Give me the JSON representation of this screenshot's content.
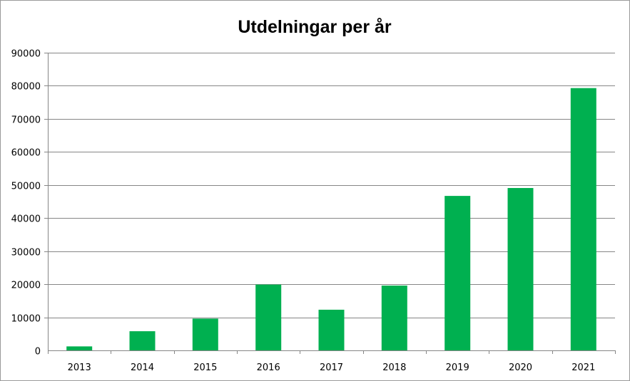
{
  "chart_data": {
    "type": "bar",
    "title": "Utdelningar per år",
    "xlabel": "",
    "ylabel": "",
    "categories": [
      "2013",
      "2014",
      "2015",
      "2016",
      "2017",
      "2018",
      "2019",
      "2020",
      "2021"
    ],
    "values": [
      1200,
      5800,
      9600,
      19900,
      12300,
      19600,
      46700,
      49100,
      79300
    ],
    "ylim": [
      0,
      90000
    ],
    "yticks": [
      0,
      10000,
      20000,
      30000,
      40000,
      50000,
      60000,
      70000,
      80000,
      90000
    ],
    "ytick_labels": [
      "0",
      "10000",
      "20000",
      "30000",
      "40000",
      "50000",
      "60000",
      "70000",
      "80000",
      "90000"
    ],
    "grid": true,
    "legend": "none",
    "bar_color": "#00b050",
    "gridline_color": "#868686"
  }
}
